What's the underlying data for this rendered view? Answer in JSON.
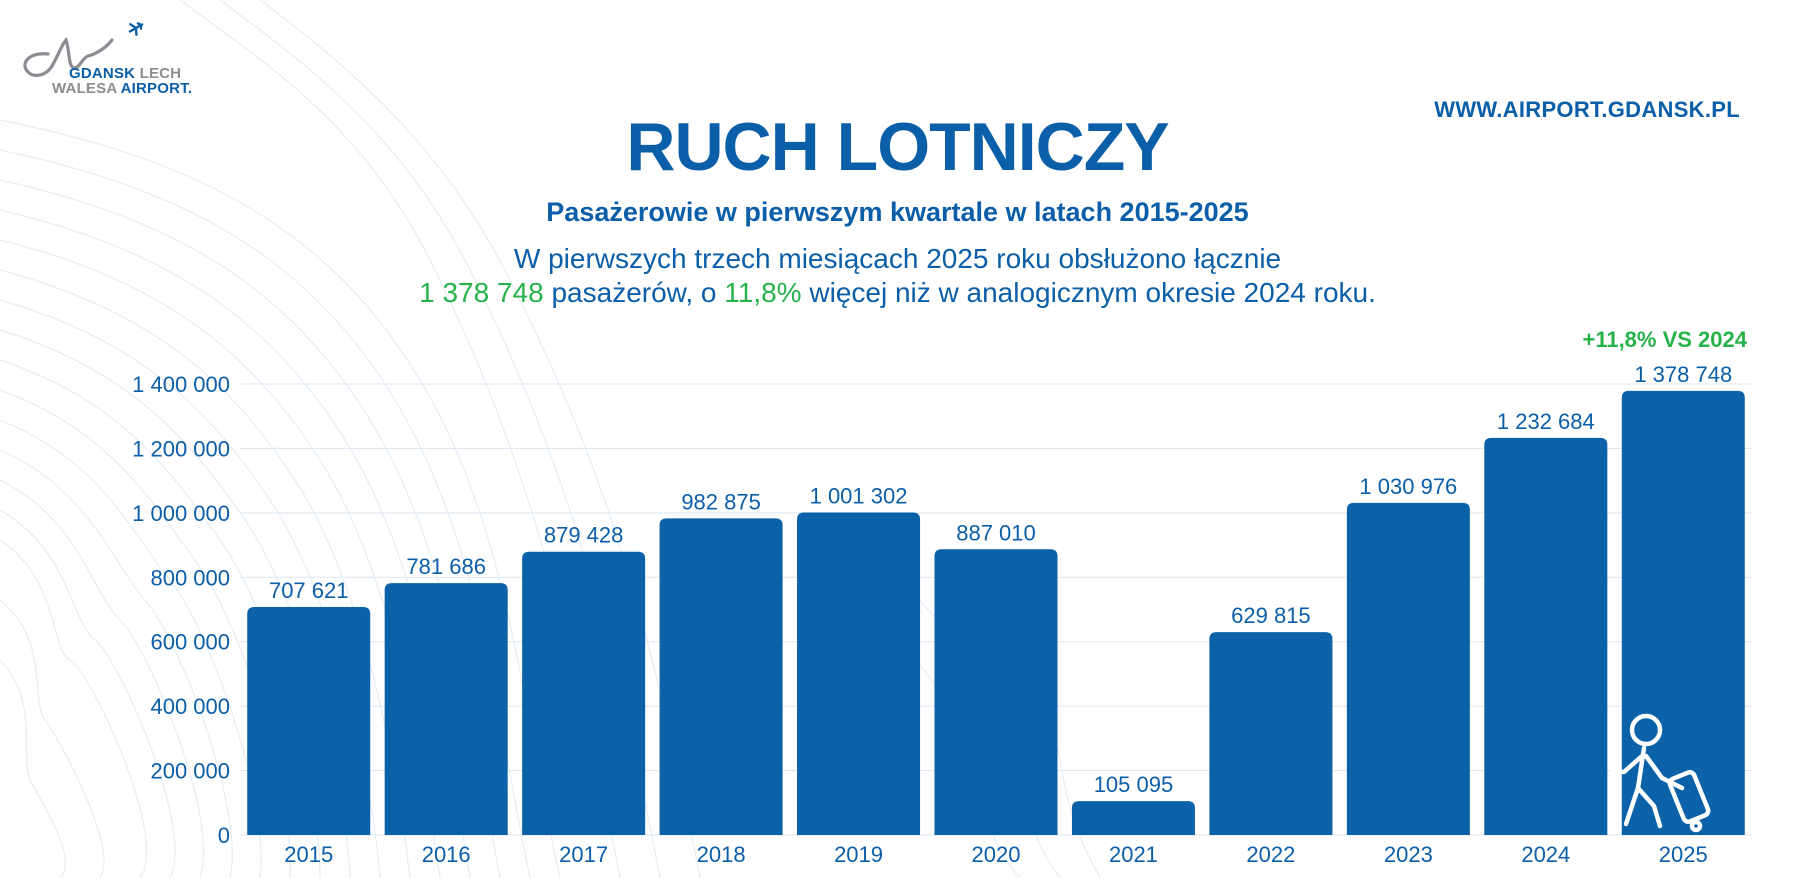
{
  "logo": {
    "line1_grey": "GDANSK",
    "line1_blue": "LECH",
    "line2_grey": "WALESA",
    "line2_blue": "AIRPORT."
  },
  "website": "WWW.AIRPORT.GDANSK.PL",
  "title": "RUCH LOTNICZY",
  "subtitle": "Pasażerowie w pierwszym kwartale w latach 2015-2025",
  "description": {
    "line1": "W pierwszych trzech miesiącach 2025 roku obsłużono łącznie",
    "total": "1 378 748",
    "mid": " pasażerów, o ",
    "growth": "11,8%",
    "end": " więcej niż w analogicznym okresie 2024 roku."
  },
  "badge": "+11,8% VS 2024",
  "colors": {
    "bar": "#0b62a8",
    "text": "#0b5ea8",
    "accent_green": "#27b24a",
    "grid": "#dbe6f0"
  },
  "icons": [
    "airplane-icon",
    "traveler-with-luggage-icon"
  ],
  "chart_data": {
    "type": "bar",
    "categories": [
      "2015",
      "2016",
      "2017",
      "2018",
      "2019",
      "2020",
      "2021",
      "2022",
      "2023",
      "2024",
      "2025"
    ],
    "values": [
      707621,
      781686,
      879428,
      982875,
      1001302,
      887010,
      105095,
      629815,
      1030976,
      1232684,
      1378748
    ],
    "value_labels": [
      "707 621",
      "781 686",
      "879 428",
      "982 875",
      "1 001 302",
      "887 010",
      "105 095",
      "629 815",
      "1 030 976",
      "1 232 684",
      "1 378 748"
    ],
    "yticks": [
      0,
      200000,
      400000,
      600000,
      800000,
      1000000,
      1200000,
      1400000
    ],
    "ytick_labels": [
      "0",
      "200 000",
      "400 000",
      "600 000",
      "800 000",
      "1 000 000",
      "1 200 000",
      "1 400 000"
    ],
    "ylim": [
      0,
      1400000
    ],
    "grid": true,
    "legend": false
  }
}
